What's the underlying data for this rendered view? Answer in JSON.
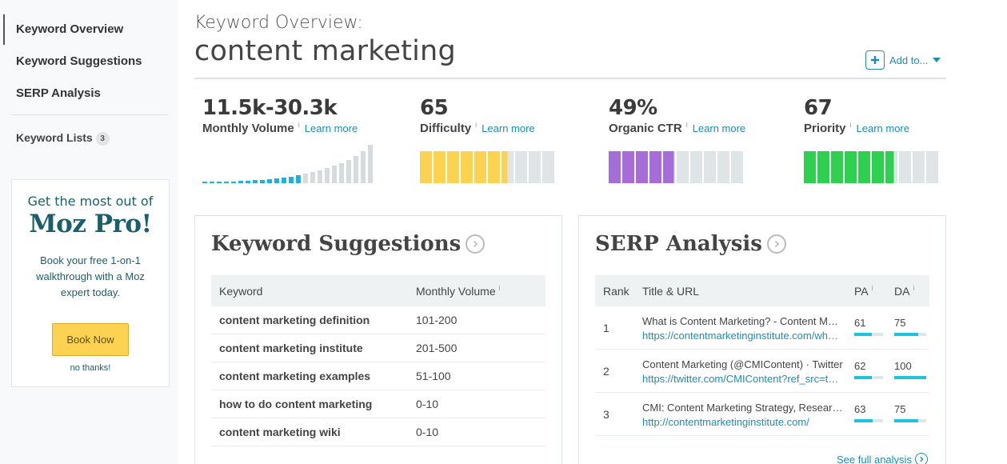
{
  "sidebar": {
    "items": [
      {
        "label": "Keyword Overview",
        "active": true
      },
      {
        "label": "Keyword Suggestions",
        "active": false
      },
      {
        "label": "SERP Analysis",
        "active": false
      }
    ],
    "lists_label": "Keyword Lists",
    "lists_count": "3",
    "promo": {
      "line1": "Get the most out of",
      "title": "Moz Pro!",
      "text": "Book your free 1-on-1 walkthrough with a Moz expert today.",
      "button": "Book Now",
      "dismiss": "no thanks!"
    }
  },
  "header": {
    "subtitle": "Keyword Overview:",
    "keyword": "content marketing",
    "add_to": "Add to..."
  },
  "metrics": {
    "volume": {
      "value": "11.5k-30.3k",
      "label": "Monthly Volume",
      "info": "i",
      "learn": "Learn more"
    },
    "difficulty": {
      "value": "65",
      "label": "Difficulty",
      "info": "i",
      "learn": "Learn more",
      "level": 65
    },
    "ctr": {
      "value": "49%",
      "label": "Organic CTR",
      "info": "i",
      "learn": "Learn more",
      "level": 49
    },
    "priority": {
      "value": "67",
      "label": "Priority",
      "info": "i",
      "learn": "Learn more",
      "level": 67
    }
  },
  "colors": {
    "difficulty": "#fcd251",
    "ctr": "#a66cd8",
    "priority": "#2ed14f",
    "empty": "#dfe4e6",
    "accent": "#1a8fb2"
  },
  "suggestions": {
    "title": "Keyword Suggestions",
    "col_keyword": "Keyword",
    "col_volume": "Monthly Volume",
    "info": "i",
    "rows": [
      {
        "keyword": "content marketing definition",
        "volume": "101-200"
      },
      {
        "keyword": "content marketing institute",
        "volume": "201-500"
      },
      {
        "keyword": "content marketing examples",
        "volume": "51-100"
      },
      {
        "keyword": "how to do content marketing",
        "volume": "0-10"
      },
      {
        "keyword": "content marketing wiki",
        "volume": "0-10"
      }
    ]
  },
  "serp": {
    "title": "SERP Analysis",
    "col_rank": "Rank",
    "col_title": "Title & URL",
    "col_pa": "PA",
    "col_da": "DA",
    "info": "i",
    "rows": [
      {
        "rank": "1",
        "title": "What is Content Marketing? - Content Marketing Institute",
        "url": "https://contentmarketinginstitute.com/what-is-content-marketing/",
        "pa": "61",
        "da": "75",
        "pa_level": 61,
        "da_level": 75
      },
      {
        "rank": "2",
        "title": "Content Marketing (@CMIContent) · Twitter",
        "url": "https://twitter.com/CMIContent?ref_src=twsrc",
        "pa": "62",
        "da": "100",
        "pa_level": 62,
        "da_level": 100
      },
      {
        "rank": "3",
        "title": "CMI: Content Marketing Strategy, Research, Events",
        "url": "http://contentmarketinginstitute.com/",
        "pa": "63",
        "da": "75",
        "pa_level": 63,
        "da_level": 75
      }
    ],
    "see_full": "See full analysis"
  },
  "volume_trend": [
    2,
    2,
    2,
    2,
    2,
    3,
    3,
    4,
    4,
    5,
    6,
    7,
    8,
    10,
    12,
    14,
    16,
    19,
    22,
    25,
    29,
    34,
    40,
    48
  ]
}
